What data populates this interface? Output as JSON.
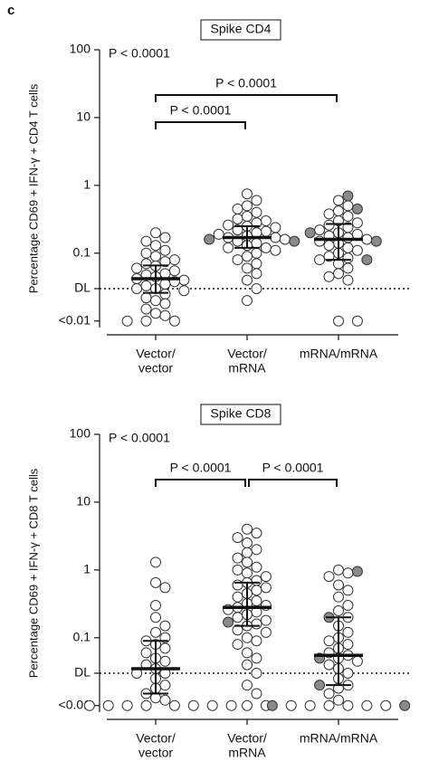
{
  "panel_label": "c",
  "chart_data": [
    {
      "type": "dot_plot",
      "title": "Spike CD4",
      "y_label": "Percentage CD69 + IFN-γ + CD4 T cells",
      "log_scale": true,
      "ylim": [
        0.008,
        100
      ],
      "yticks": [
        {
          "value": 0.01,
          "label": "<0.01"
        },
        {
          "value": 0.03,
          "label": "DL"
        },
        0.1,
        1,
        10,
        100
      ],
      "threshold": 0.03,
      "annotation": "P < 0.0001",
      "categories": [
        [
          "Vector/",
          "vector"
        ],
        [
          "Vector/",
          "mRNA"
        ],
        [
          "mRNA/mRNA"
        ]
      ],
      "point_color": "#ffffff",
      "highlight_color": "#8a8a8a",
      "groups": [
        {
          "values": [
            0.2,
            0.17,
            0.15,
            0.13,
            0.11,
            0.1,
            0.09,
            0.08,
            0.075,
            0.07,
            0.065,
            0.06,
            0.055,
            0.05,
            0.048,
            0.045,
            0.042,
            0.04,
            0.038,
            0.035,
            0.033,
            0.03,
            0.03,
            0.028,
            0.025,
            0.022,
            0.02,
            0.018,
            0.015,
            0.013,
            0.012,
            0.01,
            0.01,
            0.01
          ],
          "highlight_values": [],
          "median": 0.042,
          "q1": 0.026,
          "q3": 0.066
        },
        {
          "values": [
            0.75,
            0.6,
            0.5,
            0.45,
            0.4,
            0.35,
            0.32,
            0.3,
            0.28,
            0.26,
            0.25,
            0.24,
            0.22,
            0.21,
            0.2,
            0.19,
            0.18,
            0.17,
            0.17,
            0.16,
            0.15,
            0.14,
            0.13,
            0.12,
            0.12,
            0.11,
            0.1,
            0.09,
            0.08,
            0.07,
            0.06,
            0.05,
            0.04,
            0.03,
            0.02
          ],
          "highlight_values": [
            0.16,
            0.15
          ],
          "median": 0.17,
          "q1": 0.12,
          "q3": 0.25
        },
        {
          "values": [
            0.6,
            0.5,
            0.42,
            0.38,
            0.35,
            0.3,
            0.28,
            0.26,
            0.24,
            0.22,
            0.2,
            0.19,
            0.18,
            0.17,
            0.16,
            0.15,
            0.14,
            0.13,
            0.12,
            0.11,
            0.1,
            0.09,
            0.085,
            0.08,
            0.07,
            0.06,
            0.05,
            0.045,
            0.04,
            0.01,
            0.01
          ],
          "highlight_values": [
            0.7,
            0.45,
            0.2,
            0.15,
            0.08
          ],
          "median": 0.16,
          "q1": 0.08,
          "q3": 0.27
        }
      ],
      "comparisons": [
        {
          "groups": [
            0,
            2
          ],
          "label": "P < 0.0001"
        },
        {
          "groups": [
            0,
            1
          ],
          "label": "P < 0.0001"
        }
      ]
    },
    {
      "type": "dot_plot",
      "title": "Spike CD8",
      "y_label": "Percentage CD69 + IFN-γ + CD8 T cells",
      "log_scale": true,
      "ylim": [
        0.008,
        100
      ],
      "yticks": [
        {
          "value": 0.01,
          "label": "<0.01"
        },
        {
          "value": 0.03,
          "label": "DL"
        },
        0.1,
        1,
        10,
        100
      ],
      "threshold": 0.03,
      "annotation": "P < 0.0001",
      "categories": [
        [
          "Vector/",
          "vector"
        ],
        [
          "Vector/",
          "mRNA"
        ],
        [
          "mRNA/mRNA"
        ]
      ],
      "point_color": "#ffffff",
      "highlight_color": "#8a8a8a",
      "groups": [
        {
          "values": [
            1.3,
            0.65,
            0.55,
            0.3,
            0.2,
            0.15,
            0.12,
            0.1,
            0.09,
            0.08,
            0.07,
            0.06,
            0.05,
            0.045,
            0.04,
            0.035,
            0.03,
            0.03,
            0.025,
            0.02,
            0.018,
            0.015,
            0.013,
            0.012,
            0.01,
            0.01,
            0.01,
            0.01,
            0.01,
            0.01,
            0.01,
            0.01
          ],
          "highlight_values": [],
          "median": 0.035,
          "q1": 0.015,
          "q3": 0.09
        },
        {
          "values": [
            4,
            3.5,
            3,
            2.5,
            2,
            1.8,
            1.5,
            1.3,
            1.1,
            1,
            0.9,
            0.8,
            0.7,
            0.65,
            0.6,
            0.55,
            0.5,
            0.45,
            0.4,
            0.35,
            0.32,
            0.3,
            0.28,
            0.26,
            0.24,
            0.22,
            0.2,
            0.18,
            0.16,
            0.15,
            0.13,
            0.12,
            0.1,
            0.09,
            0.08,
            0.06,
            0.05,
            0.04,
            0.03,
            0.02,
            0.015,
            0.01,
            0.01
          ],
          "highlight_values": [
            0.17
          ],
          "median": 0.28,
          "q1": 0.15,
          "q3": 0.65
        },
        {
          "values": [
            1,
            0.9,
            0.8,
            0.6,
            0.5,
            0.4,
            0.3,
            0.25,
            0.2,
            0.15,
            0.12,
            0.1,
            0.09,
            0.08,
            0.07,
            0.06,
            0.055,
            0.05,
            0.045,
            0.04,
            0.035,
            0.03,
            0.025,
            0.02,
            0.018,
            0.015,
            0.012,
            0.01,
            0.01,
            0.01,
            0.01,
            0.01,
            0.01
          ],
          "highlight_values": [
            0.95,
            0.2,
            0.05,
            0.02,
            0.01,
            0.01
          ],
          "median": 0.055,
          "q1": 0.02,
          "q3": 0.2
        }
      ],
      "comparisons": [
        {
          "groups": [
            0,
            1
          ],
          "label": "P < 0.0001"
        },
        {
          "groups": [
            1,
            2
          ],
          "label": "P < 0.0001"
        }
      ]
    }
  ]
}
